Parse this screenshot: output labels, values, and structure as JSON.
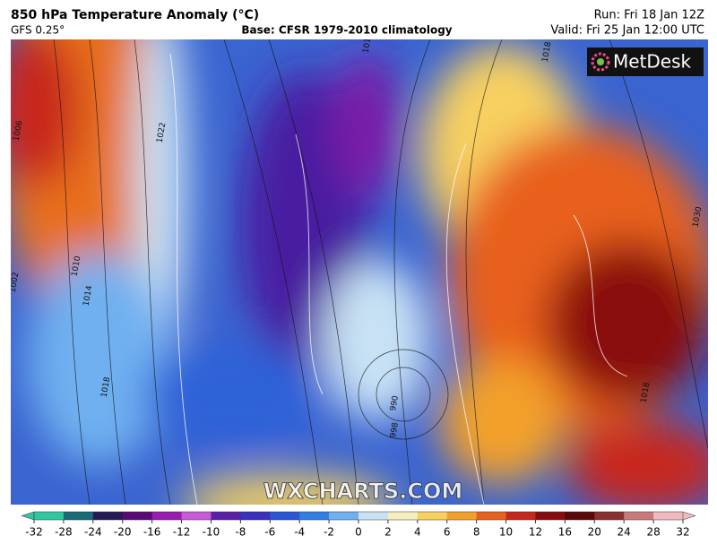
{
  "header": {
    "title": "850 hPa Temperature Anomaly (°C)",
    "model": "GFS 0.25°",
    "base": "Base: CFSR 1979-2010 climatology",
    "run": "Run: Fri 18 Jan 12Z",
    "valid": "Valid: Fri 25 Jan 12:00 UTC"
  },
  "logo": "MetDesk",
  "watermark": "WXCHARTS.COM",
  "isobar_labels": [
    1022,
    1014,
    1010,
    1002,
    1018,
    990,
    998,
    1018,
    1030,
    1014,
    1018,
    1006
  ],
  "colorbar": {
    "ticks": [
      -32,
      -28,
      -24,
      -20,
      -16,
      -12,
      -10,
      -8,
      -6,
      -4,
      -2,
      0,
      2,
      4,
      6,
      8,
      10,
      12,
      16,
      20,
      24,
      28,
      32
    ],
    "colors": [
      "#2fc7a0",
      "#1a6b78",
      "#241a58",
      "#5a0a74",
      "#9a1cb0",
      "#c85ad8",
      "#5a1fa8",
      "#3a2fc0",
      "#2a55d8",
      "#2f7fe6",
      "#6fb0f0",
      "#c8e2f4",
      "#f5efc0",
      "#f7d060",
      "#f3a02a",
      "#e8601c",
      "#c8281c",
      "#8a0c10",
      "#5a0808",
      "#8a3030",
      "#c87a7a",
      "#f0b8c0"
    ]
  }
}
